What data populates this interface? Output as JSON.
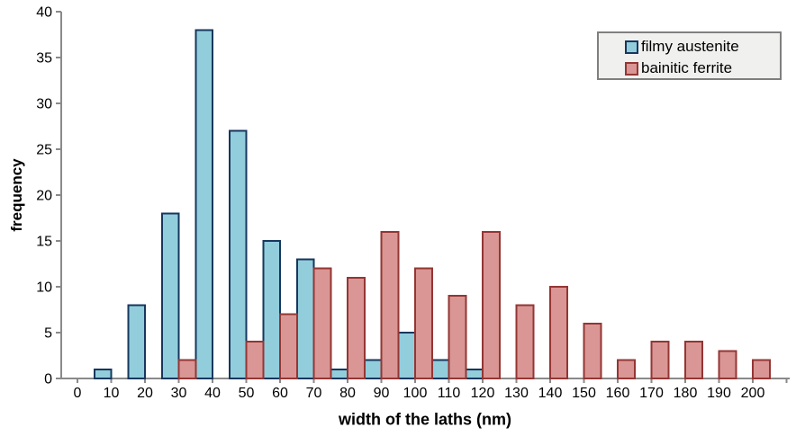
{
  "page": {
    "background_color": "#ffffff"
  },
  "chart_data": {
    "type": "bar",
    "title": "",
    "xlabel": "width of the laths (nm)",
    "ylabel": "frequency",
    "categories": [
      "0",
      "10",
      "20",
      "30",
      "40",
      "50",
      "60",
      "70",
      "80",
      "90",
      "100",
      "110",
      "120",
      "130",
      "140",
      "150",
      "160",
      "170",
      "180",
      "190",
      "200"
    ],
    "series": [
      {
        "name": "filmy austenite",
        "fill_color": "#92cddc",
        "border_color": "#17375e",
        "values": [
          0,
          1,
          8,
          18,
          38,
          27,
          15,
          13,
          1,
          2,
          5,
          2,
          1,
          0,
          0,
          0,
          0,
          0,
          0,
          0,
          0
        ]
      },
      {
        "name": "bainitic ferrite",
        "fill_color": "#d99694",
        "border_color": "#943634",
        "values": [
          0,
          0,
          0,
          2,
          0,
          4,
          7,
          12,
          11,
          16,
          12,
          9,
          16,
          8,
          10,
          6,
          2,
          4,
          4,
          3,
          2
        ]
      }
    ],
    "ylim": [
      0,
      40
    ],
    "yticks": [
      0,
      5,
      10,
      15,
      20,
      25,
      30,
      35,
      40
    ],
    "x_extra_unlabeled_tick": 210,
    "grid": false,
    "legend_position": "top-right",
    "axis_color": "#8a8a8a",
    "tick_label_color": "#000000"
  }
}
